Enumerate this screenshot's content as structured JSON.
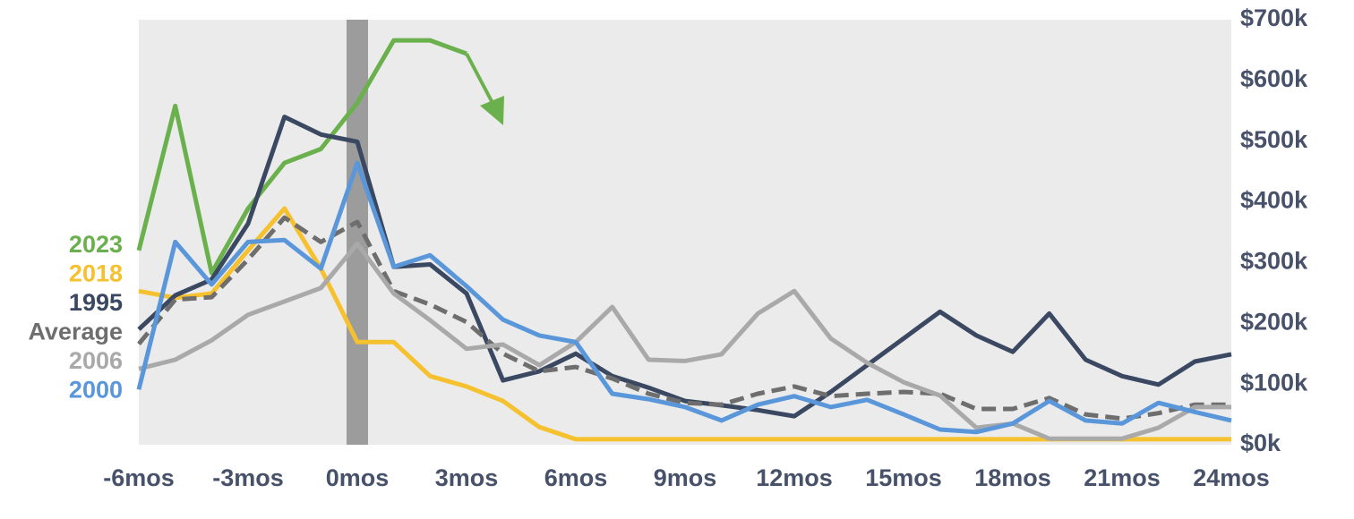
{
  "chart_data": {
    "type": "line",
    "x": [
      -6,
      -5,
      -4,
      -3,
      -2,
      -1,
      0,
      1,
      2,
      3,
      4,
      5,
      6,
      7,
      8,
      9,
      10,
      11,
      12,
      13,
      14,
      15,
      16,
      17,
      18,
      19,
      20,
      21,
      22,
      23,
      24
    ],
    "xlim": [
      -6,
      24
    ],
    "xticks": [
      {
        "value": -6,
        "label": "-6mos"
      },
      {
        "value": -3,
        "label": "-3mos"
      },
      {
        "value": 0,
        "label": "0mos"
      },
      {
        "value": 3,
        "label": "3mos"
      },
      {
        "value": 6,
        "label": "6mos"
      },
      {
        "value": 9,
        "label": "9mos"
      },
      {
        "value": 12,
        "label": "12mos"
      },
      {
        "value": 15,
        "label": "15mos"
      },
      {
        "value": 18,
        "label": "18mos"
      },
      {
        "value": 21,
        "label": "21mos"
      },
      {
        "value": 24,
        "label": "24mos"
      }
    ],
    "ylim": [
      0,
      700
    ],
    "yticks": [
      {
        "value": 0,
        "label": "$0k"
      },
      {
        "value": 100,
        "label": "$100k"
      },
      {
        "value": 200,
        "label": "$200k"
      },
      {
        "value": 300,
        "label": "$300k"
      },
      {
        "value": 400,
        "label": "$400k"
      },
      {
        "value": 500,
        "label": "$500k"
      },
      {
        "value": 600,
        "label": "$600k"
      },
      {
        "value": 700,
        "label": "$700k"
      }
    ],
    "y_axis_side": "right",
    "grid": false,
    "legend": "left",
    "series": [
      {
        "name": "2023",
        "color": "#6ab04c",
        "values": [
          320,
          558,
          283,
          389,
          464,
          487,
          563,
          666,
          666,
          644,
          null,
          null,
          null,
          null,
          null,
          null,
          null,
          null,
          null,
          null,
          null,
          null,
          null,
          null,
          null,
          null,
          null,
          null,
          null,
          null,
          null
        ]
      },
      {
        "name": "2018",
        "color": "#f6c12e",
        "values": [
          253,
          242,
          249,
          320,
          389,
          290,
          169,
          169,
          113,
          96,
          72,
          29,
          9,
          9,
          9,
          9,
          9,
          9,
          9,
          9,
          9,
          9,
          9,
          9,
          9,
          9,
          9,
          9,
          9,
          9,
          9
        ]
      },
      {
        "name": "1995",
        "color": "#3b4862",
        "values": [
          190,
          246,
          272,
          364,
          540,
          511,
          499,
          293,
          297,
          249,
          106,
          121,
          150,
          113,
          94,
          72,
          65,
          57,
          47,
          87,
          131,
          175,
          219,
          180,
          153,
          216,
          140,
          113,
          99,
          137,
          149
        ]
      },
      {
        "name": "Average",
        "color": "#6e6e6e",
        "style": "dashed",
        "values": [
          166,
          239,
          243,
          305,
          374,
          334,
          367,
          253,
          231,
          202,
          150,
          121,
          128,
          109,
          84,
          69,
          66,
          84,
          96,
          80,
          84,
          87,
          84,
          59,
          59,
          77,
          50,
          43,
          52,
          66,
          66
        ]
      },
      {
        "name": "2006",
        "color": "#a9a9a9",
        "values": [
          125,
          140,
          172,
          214,
          236,
          258,
          331,
          249,
          205,
          158,
          165,
          131,
          169,
          227,
          140,
          138,
          149,
          216,
          253,
          175,
          135,
          103,
          81,
          28,
          35,
          10,
          10,
          10,
          28,
          62,
          62
        ]
      },
      {
        "name": "2000",
        "color": "#5a97da",
        "values": [
          91,
          334,
          264,
          334,
          337,
          290,
          464,
          293,
          312,
          261,
          206,
          180,
          169,
          84,
          75,
          62,
          40,
          66,
          80,
          62,
          74,
          50,
          25,
          21,
          35,
          72,
          40,
          35,
          69,
          54,
          40
        ]
      }
    ]
  }
}
